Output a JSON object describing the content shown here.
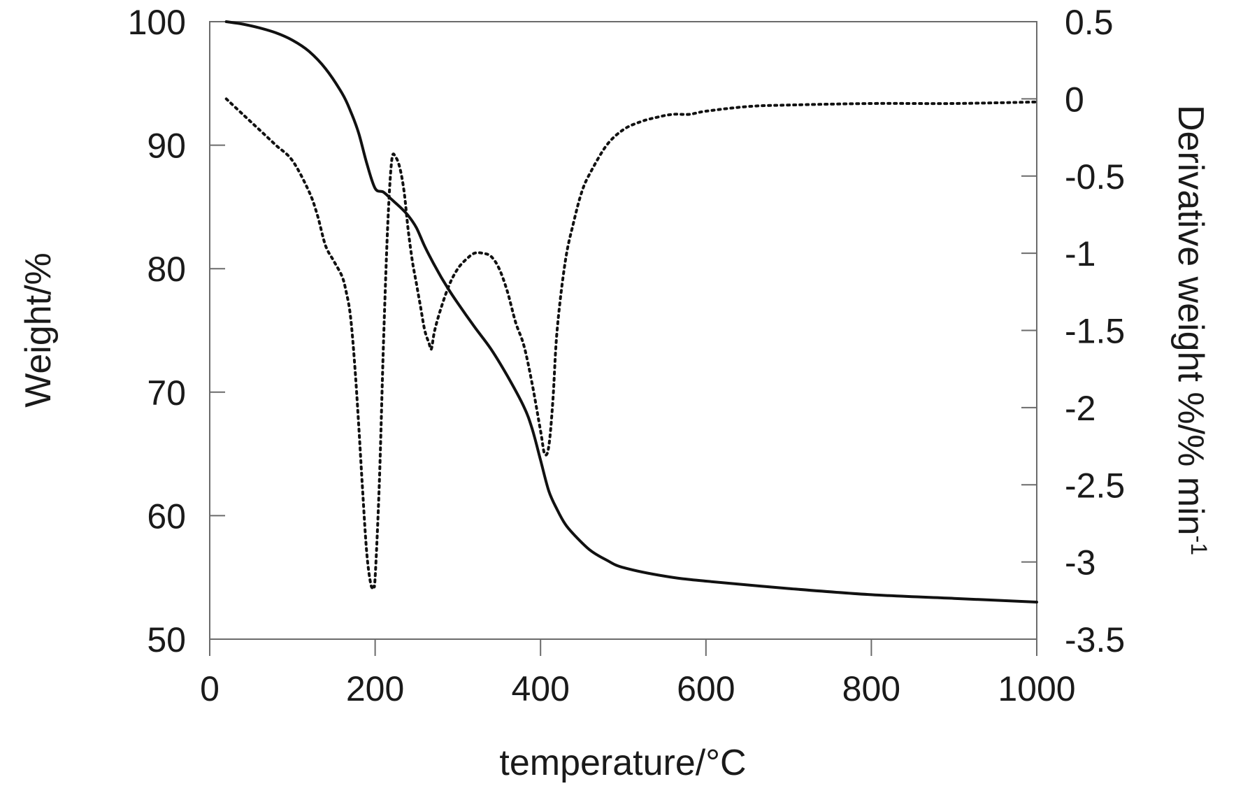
{
  "chart_data": {
    "type": "line",
    "title": "",
    "xlabel": "temperature/°C",
    "ylabel": "Weight/%",
    "y2label_main": "Derivative weight %/% min",
    "y2label_sup": "-1",
    "xlim": [
      0,
      1000
    ],
    "ylim": [
      50,
      100
    ],
    "y2lim": [
      -3.5,
      0.5
    ],
    "x_ticks": [
      0,
      200,
      400,
      600,
      800,
      1000
    ],
    "x_tick_labels": [
      "0",
      "200",
      "400",
      "600",
      "800",
      "1000"
    ],
    "y_ticks": [
      50,
      60,
      70,
      80,
      90,
      100
    ],
    "y_tick_labels": [
      "50",
      "60",
      "70",
      "80",
      "90",
      "100"
    ],
    "y2_ticks": [
      0.5,
      0,
      -0.5,
      -1,
      -1.5,
      -2,
      -2.5,
      -3,
      -3.5
    ],
    "y2_tick_labels": [
      "0.5",
      "0",
      "-0.5",
      "-1",
      "-1.5",
      "-2",
      "-2.5",
      "-3",
      "-3.5"
    ],
    "grid": false,
    "series": [
      {
        "name": "Weight",
        "axis": "left",
        "style": "solid",
        "x": [
          20,
          40,
          60,
          80,
          100,
          120,
          140,
          160,
          170,
          180,
          190,
          200,
          210,
          220,
          230,
          240,
          250,
          260,
          270,
          280,
          290,
          300,
          320,
          340,
          360,
          380,
          390,
          400,
          410,
          420,
          430,
          440,
          460,
          480,
          500,
          550,
          600,
          700,
          800,
          900,
          1000
        ],
        "y": [
          100,
          99.8,
          99.5,
          99.1,
          98.5,
          97.6,
          96.2,
          94.2,
          92.8,
          91.0,
          88.5,
          86.5,
          86.2,
          85.6,
          85.0,
          84.3,
          83.3,
          81.8,
          80.5,
          79.3,
          78.2,
          77.2,
          75.3,
          73.5,
          71.3,
          68.8,
          67.0,
          64.5,
          62.0,
          60.5,
          59.3,
          58.5,
          57.2,
          56.4,
          55.8,
          55.1,
          54.7,
          54.1,
          53.6,
          53.3,
          53.0
        ]
      },
      {
        "name": "Derivative weight",
        "axis": "right",
        "style": "dotted",
        "x": [
          20,
          40,
          60,
          80,
          100,
          120,
          130,
          140,
          150,
          160,
          165,
          170,
          175,
          180,
          185,
          190,
          195,
          198,
          200,
          205,
          210,
          215,
          220,
          225,
          230,
          235,
          240,
          245,
          250,
          255,
          260,
          265,
          268,
          272,
          280,
          290,
          300,
          310,
          320,
          330,
          340,
          350,
          360,
          370,
          380,
          390,
          400,
          405,
          410,
          415,
          420,
          430,
          440,
          450,
          460,
          480,
          500,
          520,
          540,
          560,
          580,
          600,
          650,
          700,
          800,
          900,
          1000
        ],
        "y": [
          0.0,
          -0.1,
          -0.2,
          -0.3,
          -0.4,
          -0.6,
          -0.75,
          -0.95,
          -1.05,
          -1.15,
          -1.25,
          -1.4,
          -1.7,
          -2.1,
          -2.55,
          -2.95,
          -3.15,
          -3.15,
          -3.1,
          -2.5,
          -1.6,
          -0.85,
          -0.4,
          -0.38,
          -0.45,
          -0.6,
          -0.85,
          -1.05,
          -1.2,
          -1.35,
          -1.5,
          -1.58,
          -1.62,
          -1.5,
          -1.35,
          -1.2,
          -1.1,
          -1.04,
          -1.0,
          -1.0,
          -1.02,
          -1.1,
          -1.25,
          -1.45,
          -1.6,
          -1.85,
          -2.15,
          -2.3,
          -2.25,
          -1.95,
          -1.5,
          -1.05,
          -0.8,
          -0.6,
          -0.48,
          -0.3,
          -0.2,
          -0.15,
          -0.12,
          -0.1,
          -0.1,
          -0.08,
          -0.05,
          -0.04,
          -0.03,
          -0.03,
          -0.02
        ]
      }
    ]
  }
}
